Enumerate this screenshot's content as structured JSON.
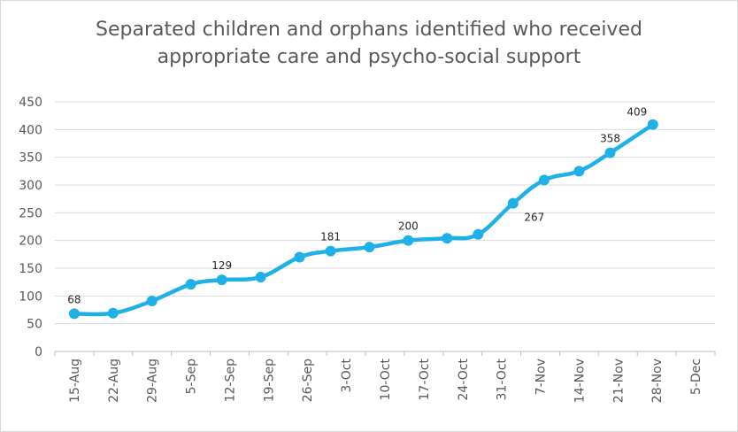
{
  "chart_data": {
    "type": "line",
    "title_lines": [
      "Separated children and orphans identified who received",
      "appropriate care and psycho-social support"
    ],
    "categories": [
      "15-Aug",
      "22-Aug",
      "29-Aug",
      "5-Sep",
      "12-Sep",
      "19-Sep",
      "26-Sep",
      "3-Oct",
      "10-Oct",
      "17-Oct",
      "24-Oct",
      "31-Oct",
      "7-Nov",
      "14-Nov",
      "21-Nov",
      "28-Nov",
      "5-Dec"
    ],
    "x_positions": [
      0,
      1,
      2,
      3,
      3.8,
      4.8,
      5.8,
      6.6,
      7.6,
      8.6,
      9.6,
      10.4,
      11.3,
      12.1,
      13,
      13.8,
      14.9
    ],
    "values": [
      68,
      69,
      91,
      121,
      129,
      134,
      170,
      181,
      188,
      200,
      204,
      211,
      267,
      309,
      325,
      358,
      409
    ],
    "data_labels": {
      "0": "68",
      "4": "129",
      "7": "181",
      "9": "200",
      "12": "267",
      "15": "358",
      "16": "409"
    },
    "ylim": [
      0,
      450
    ],
    "yticks": [
      0,
      50,
      100,
      150,
      200,
      250,
      300,
      350,
      400,
      450
    ],
    "xlabel": "",
    "ylabel": "",
    "grid": true,
    "legend": "none",
    "series_color": "#1fb0e8"
  }
}
